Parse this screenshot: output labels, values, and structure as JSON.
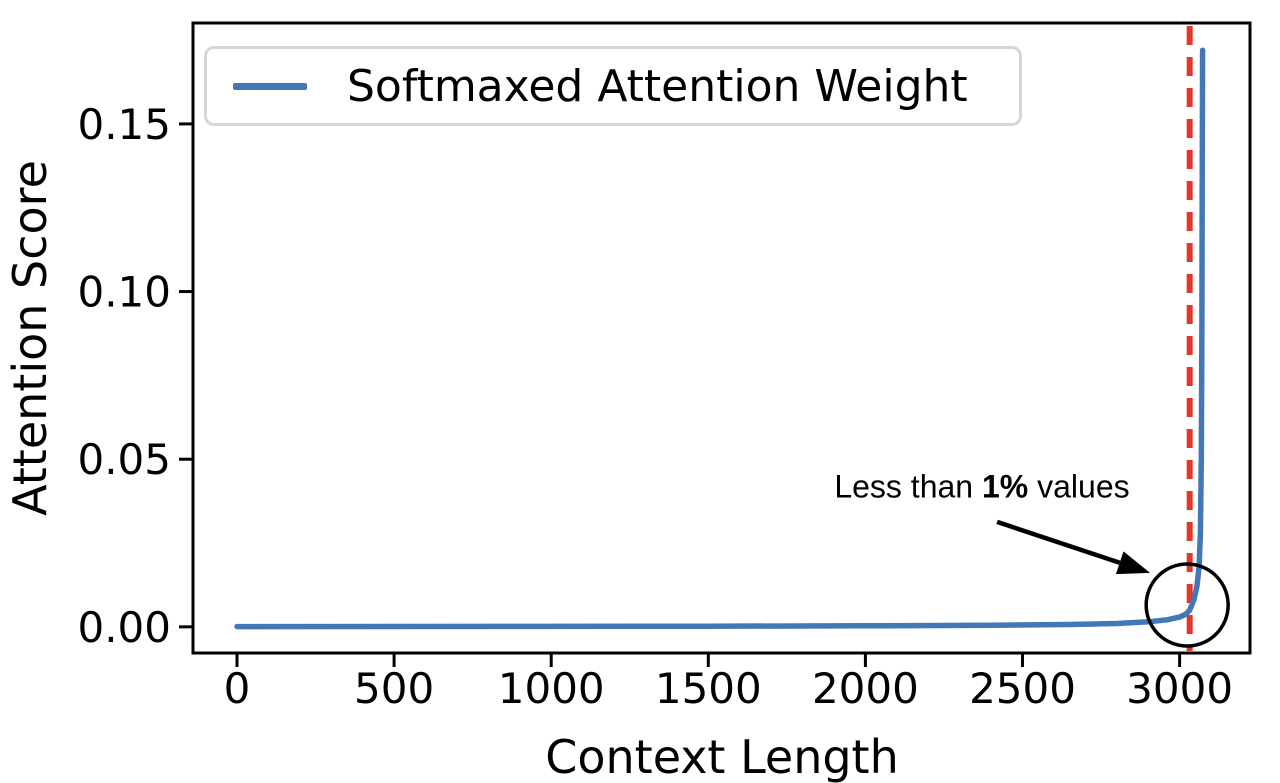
{
  "figure": {
    "background": "#ffffff",
    "axis_color": "#000000",
    "annotation_color": "#000000"
  },
  "chart_data": {
    "type": "line",
    "title": "",
    "xlabel": "Context Length",
    "ylabel": "Attention Score",
    "xlim": [
      -140,
      3224
    ],
    "ylim": [
      -0.0078,
      0.1801
    ],
    "grid": false,
    "xticks": [
      0,
      500,
      1000,
      1500,
      2000,
      2500,
      3000
    ],
    "xtick_labels": [
      "0",
      "500",
      "1000",
      "1500",
      "2000",
      "2500",
      "3000"
    ],
    "yticks": [
      0.0,
      0.05,
      0.1,
      0.15
    ],
    "ytick_labels": [
      "0.00",
      "0.05",
      "0.10",
      "0.15"
    ],
    "legend": {
      "position": "upper-left",
      "entries": [
        {
          "label": "Softmaxed Attention Weight",
          "color": "#4377B6"
        }
      ]
    },
    "series": [
      {
        "name": "Softmaxed Attention Weight",
        "color": "#4377B6",
        "line_width": 5.5,
        "points": [
          [
            0,
            8e-05
          ],
          [
            500,
            0.0001
          ],
          [
            1000,
            0.00014
          ],
          [
            1500,
            0.0002
          ],
          [
            2000,
            0.0003
          ],
          [
            2400,
            0.00045
          ],
          [
            2650,
            0.0007
          ],
          [
            2800,
            0.001
          ],
          [
            2900,
            0.0015
          ],
          [
            2960,
            0.0021
          ],
          [
            3000,
            0.0029
          ],
          [
            3020,
            0.0038
          ],
          [
            3032,
            0.005
          ],
          [
            3045,
            0.008
          ],
          [
            3055,
            0.012
          ],
          [
            3062,
            0.018
          ],
          [
            3066,
            0.028
          ],
          [
            3069,
            0.05
          ],
          [
            3071,
            0.09
          ],
          [
            3072,
            0.13
          ],
          [
            3073,
            0.172
          ]
        ]
      }
    ],
    "vline": {
      "x": 3032,
      "color": "#E2382C",
      "style": "dashed",
      "width": 6
    },
    "annotation": {
      "text_prefix": "Less than ",
      "text_bold": "1%",
      "text_suffix": " values",
      "text_xy": [
        2371,
        0.0417
      ],
      "arrow_from": [
        2419,
        0.0313
      ],
      "arrow_to": [
        2906,
        0.0161
      ],
      "circle_center": [
        3024,
        0.0065
      ],
      "circle_radius_px": 41
    }
  }
}
